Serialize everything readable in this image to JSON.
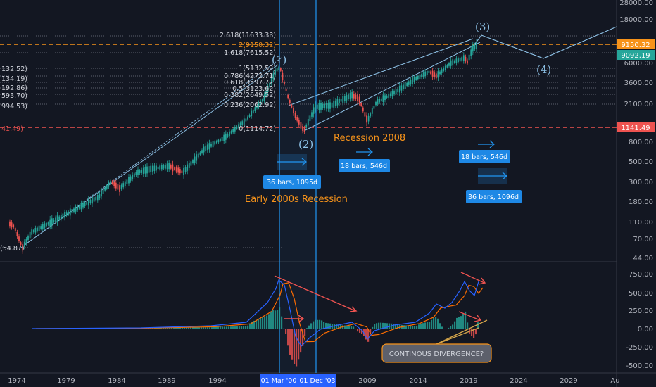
{
  "price_axis": {
    "ticks": [
      "28000.00",
      "18000.00",
      "6000.00",
      "3600.00",
      "2100.00",
      "800.00",
      "500.00",
      "300.00",
      "180.00",
      "110.00",
      "70.00",
      "44.00"
    ],
    "badges": [
      {
        "label": "9150.32",
        "color": "#f7931a"
      },
      {
        "label": "9092.19",
        "color": "#26a69a"
      },
      {
        "label": "1141.49",
        "color": "#ef5350"
      }
    ]
  },
  "macd_axis": {
    "ticks": [
      "750.00",
      "500.00",
      "250.00",
      "0.00",
      "-250.00",
      "-500.00"
    ]
  },
  "time_axis": {
    "ticks": [
      "1974",
      "1979",
      "1984",
      "1989",
      "1994",
      "2009",
      "2014",
      "2019",
      "2024",
      "2029",
      "Au"
    ],
    "highlights": [
      "01 Mar '00",
      "01 Dec '03"
    ]
  },
  "fib_levels": [
    {
      "label": "2.618(11633.33)"
    },
    {
      "label": "2(9150.32)"
    },
    {
      "label": "1.618(7615.52)"
    },
    {
      "label": "1(5132.52)"
    },
    {
      "label": "0.786(4272.71)"
    },
    {
      "label": "0.618(3597.72)"
    },
    {
      "label": "0.5(3123.62)"
    },
    {
      "label": "0.382(2649.52)"
    },
    {
      "label": "0.236(2062.92)"
    },
    {
      "label": "0(1114.72)"
    }
  ],
  "left_labels": [
    "132.52)",
    "134.19)",
    "192.86)",
    "593.70)",
    "994.53)",
    "41.49)",
    "(54.87)"
  ],
  "waves": [
    "(1)",
    "(2)",
    "(3)",
    "(4)"
  ],
  "annotations": {
    "early_recession": "Early 2000s Recession",
    "recession_2008": "Recession 2008",
    "divergence": "CONTINOUS DIVERGENCE?"
  },
  "measure_boxes": [
    {
      "label": "36 bars, 1095d"
    },
    {
      "label": "18 bars, 546d"
    },
    {
      "label": "18 bars, 546d"
    },
    {
      "label": "36 bars, 1096d"
    }
  ],
  "colors": {
    "background": "#131722",
    "up_candle": "#26a69a",
    "down_candle": "#ef5350",
    "orange": "#f7931a",
    "blue": "#2196f3",
    "wave_line": "#8fc3e8",
    "macd_line": "#2962ff",
    "signal_line": "#ff6d00"
  }
}
